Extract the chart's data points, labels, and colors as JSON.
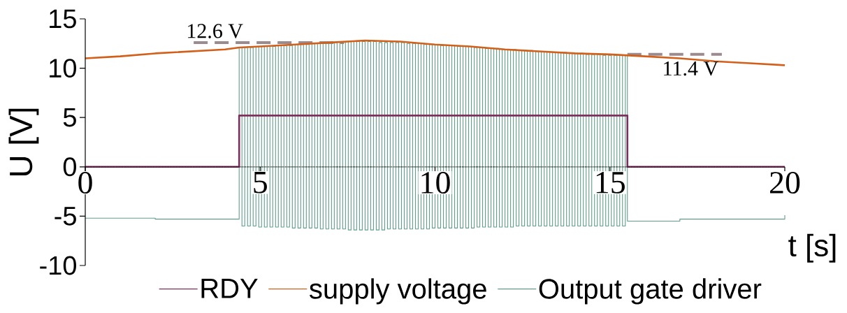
{
  "chart_data": {
    "type": "line",
    "xlabel": "t [s]",
    "ylabel": "U [V]",
    "xlim": [
      0,
      20
    ],
    "ylim": [
      -10,
      15
    ],
    "xticks": [
      0,
      5,
      10,
      15,
      20
    ],
    "yticks": [
      -10,
      -5,
      0,
      5,
      10,
      15
    ],
    "legend": "bottom",
    "annotations": [
      {
        "text": "12.6 V",
        "x": 3.7,
        "y": 12.6
      },
      {
        "text": "11.4 V",
        "x": 17.3,
        "y": 11.4
      }
    ],
    "series": [
      {
        "name": "RDY",
        "color": "#7f2f5f",
        "type": "step",
        "x": [
          0,
          4.4,
          15.5,
          20
        ],
        "values": [
          0,
          5.2,
          0,
          0
        ]
      },
      {
        "name": "supply voltage",
        "color": "#d2601a",
        "x": [
          0,
          1,
          2,
          3,
          4,
          4.4,
          5,
          6,
          7,
          8,
          9,
          10,
          11,
          12,
          13,
          14,
          15,
          16,
          17,
          18,
          19,
          20
        ],
        "values": [
          11.0,
          11.2,
          11.5,
          11.7,
          11.9,
          12.1,
          12.2,
          12.4,
          12.6,
          12.8,
          12.7,
          12.4,
          12.2,
          11.9,
          11.7,
          11.5,
          11.4,
          11.2,
          11.0,
          10.7,
          10.5,
          10.3
        ]
      },
      {
        "name": "Output gate driver",
        "color": "#5f9f88",
        "type": "step",
        "x": [
          0,
          2,
          4.4,
          4.48,
          4.56,
          4.64,
          4.72,
          4.8,
          4.88,
          4.96,
          5.04,
          5.12,
          5.2,
          5.28,
          5.36,
          5.44,
          5.52,
          5.6,
          5.68,
          5.76,
          5.84,
          5.92,
          6.0,
          6.08,
          6.16,
          6.24,
          6.32,
          6.4,
          6.48,
          6.56,
          6.64,
          6.72,
          6.8,
          6.88,
          6.96,
          7.04,
          7.12,
          7.2,
          7.28,
          7.36,
          7.44,
          7.52,
          7.6,
          7.68,
          7.76,
          7.84,
          7.92,
          8.0,
          8.08,
          8.16,
          8.24,
          8.32,
          8.4,
          8.48,
          8.56,
          8.64,
          8.72,
          8.8,
          8.88,
          8.96,
          9.04,
          9.12,
          9.2,
          9.28,
          9.36,
          9.44,
          9.52,
          9.6,
          9.68,
          9.76,
          9.84,
          9.92,
          10.0,
          10.08,
          10.16,
          10.24,
          10.32,
          10.4,
          10.48,
          10.56,
          10.64,
          10.72,
          10.8,
          10.88,
          10.96,
          11.04,
          11.12,
          11.2,
          11.28,
          11.36,
          11.44,
          11.52,
          11.6,
          11.68,
          11.76,
          11.84,
          11.92,
          12.0,
          12.08,
          12.16,
          12.24,
          12.32,
          12.4,
          12.48,
          12.56,
          12.64,
          12.72,
          12.8,
          12.88,
          12.96,
          13.04,
          13.12,
          13.2,
          13.28,
          13.36,
          13.44,
          13.52,
          13.6,
          13.68,
          13.76,
          13.84,
          13.92,
          14.0,
          14.08,
          14.16,
          14.24,
          14.32,
          14.4,
          14.48,
          14.56,
          14.64,
          14.72,
          14.8,
          14.88,
          14.96,
          15.04,
          15.12,
          15.2,
          15.28,
          15.36,
          15.44,
          15.5,
          17,
          20
        ],
        "values": [
          -5.2,
          -5.3,
          12.1,
          -6.0,
          12.1,
          -6.0,
          12.1,
          -6.0,
          12.2,
          -6.1,
          12.2,
          -6.1,
          12.2,
          -6.1,
          12.2,
          -6.1,
          12.3,
          -6.1,
          12.3,
          -6.1,
          12.3,
          -6.2,
          12.4,
          -6.2,
          12.4,
          -6.2,
          12.4,
          -6.2,
          12.5,
          -6.2,
          12.5,
          -6.3,
          12.5,
          -6.3,
          12.6,
          -6.3,
          12.6,
          -6.3,
          12.6,
          -6.3,
          12.7,
          -6.4,
          12.7,
          -6.4,
          12.7,
          -6.4,
          12.7,
          -6.4,
          12.7,
          -6.4,
          12.7,
          -6.4,
          12.6,
          -6.4,
          12.6,
          -6.3,
          12.6,
          -6.3,
          12.6,
          -6.3,
          12.6,
          -6.3,
          12.5,
          -6.3,
          12.5,
          -6.3,
          12.5,
          -6.3,
          12.4,
          -6.3,
          12.4,
          -6.2,
          12.4,
          -6.2,
          12.3,
          -6.2,
          12.3,
          -6.2,
          12.3,
          -6.2,
          12.2,
          -6.2,
          12.2,
          -6.2,
          12.2,
          -6.2,
          12.1,
          -6.1,
          12.1,
          -6.1,
          12.0,
          -6.1,
          12.0,
          -6.1,
          12.0,
          -6.1,
          11.9,
          -6.1,
          11.9,
          -6.1,
          11.9,
          -6.0,
          11.8,
          -6.0,
          11.8,
          -6.0,
          11.8,
          -6.0,
          11.7,
          -6.0,
          11.7,
          -6.0,
          11.7,
          -6.0,
          11.6,
          -6.0,
          11.6,
          -6.0,
          11.6,
          -6.0,
          11.5,
          -6.0,
          11.5,
          -6.0,
          11.5,
          -6.0,
          11.4,
          -6.0,
          11.4,
          -6.0,
          11.4,
          -6.0,
          11.3,
          -6.0,
          11.3,
          -6.0,
          11.3,
          -6.0,
          11.3,
          -6.0,
          11.3,
          -5.5,
          -5.3,
          -4.9
        ]
      },
      {
        "line_style": "dashed",
        "color": "#9b8b8f",
        "x": [
          3.1,
          7.4
        ],
        "values": [
          12.6,
          12.6
        ]
      },
      {
        "line_style": "dashed",
        "color": "#9b8b8f",
        "x": [
          15.5,
          18.2
        ],
        "values": [
          11.4,
          11.4
        ]
      }
    ]
  }
}
